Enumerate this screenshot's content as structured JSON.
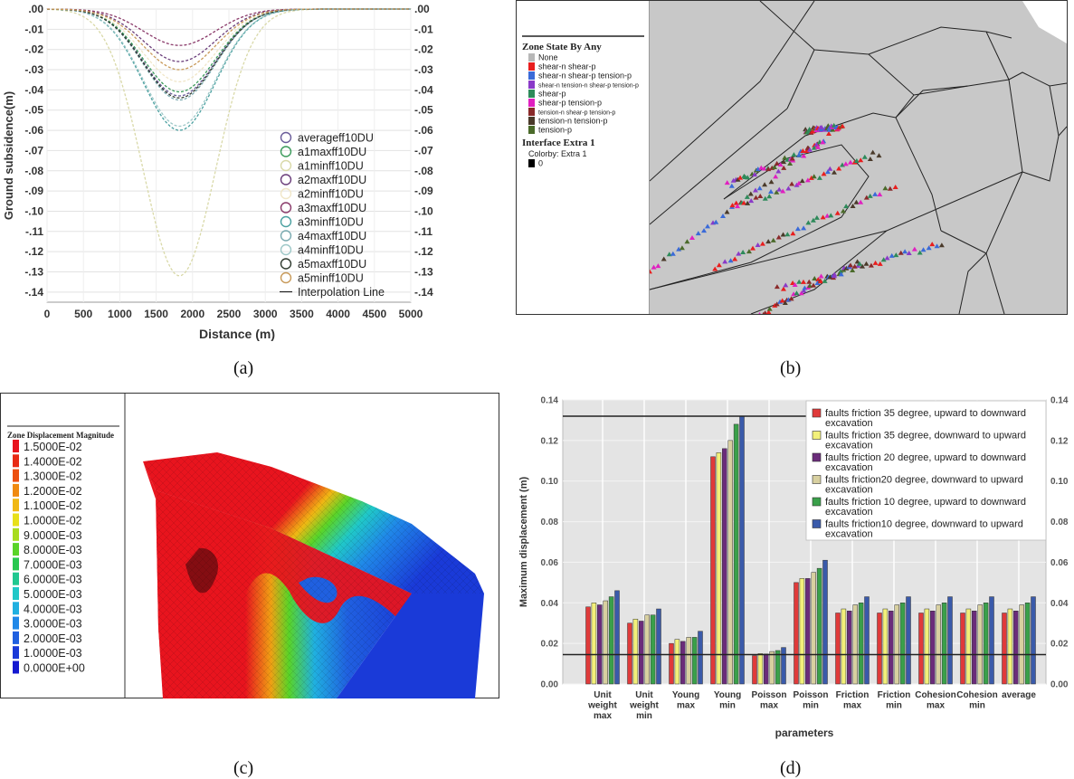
{
  "captions": [
    "(a)",
    "(b)",
    "(c)",
    "(d)"
  ],
  "chart_data": [
    {
      "type": "line",
      "panel": "a",
      "xlabel": "Distance (m)",
      "ylabel": "Ground subsidence(m)",
      "xlim": [
        0,
        5000
      ],
      "ylim": [
        -0.145,
        0.0
      ],
      "x_ticks": [
        "0",
        "500",
        "1000",
        "1500",
        "2000",
        "2500",
        "3000",
        "3500",
        "4000",
        "4500",
        "5000"
      ],
      "y_ticks": [
        ".00",
        "-.01",
        "-.02",
        "-.03",
        "-.04",
        "-.05",
        "-.06",
        "-.07",
        "-.08",
        "-.09",
        "-.10",
        "-.11",
        "-.12",
        "-.13",
        "-.14"
      ],
      "y_ticks_right": [
        ".00",
        "-.01",
        "-.02",
        "-.03",
        "-.04",
        "-.05",
        "-.06",
        "-.07",
        "-.08",
        "-.09",
        "-.10",
        "-.11",
        "-.12",
        "-.13",
        "-.14"
      ],
      "curve_shape": {
        "center": 1820,
        "width": 700
      },
      "series": [
        {
          "name": "averageff10DU",
          "marker_color": "#6a5c99",
          "min": -0.043
        },
        {
          "name": "a1maxff10DU",
          "marker_color": "#3a9a5a",
          "min": -0.041
        },
        {
          "name": "a1minff10DU",
          "marker_color": "#d9d9a8",
          "min": -0.132
        },
        {
          "name": "a2maxff10DU",
          "marker_color": "#6a3d7a",
          "min": -0.026
        },
        {
          "name": "a2minff10DU",
          "marker_color": "#f0e6c8",
          "min": -0.036
        },
        {
          "name": "a3maxff10DU",
          "marker_color": "#8a3a6a",
          "min": -0.018
        },
        {
          "name": "a3minff10DU",
          "marker_color": "#4aa0a0",
          "min": -0.06
        },
        {
          "name": "a4maxff10DU",
          "marker_color": "#7aaab0",
          "min": -0.045
        },
        {
          "name": "a4minff10DU",
          "marker_color": "#9ec8c8",
          "min": -0.058
        },
        {
          "name": "a5maxff10DU",
          "marker_color": "#2f3b2f",
          "min": -0.044
        },
        {
          "name": "a5minff10DU",
          "marker_color": "#c89a5a",
          "min": -0.03
        }
      ],
      "interpolation_label": "Interpolation Line"
    },
    {
      "type": "bar",
      "panel": "d",
      "xlabel": "parameters",
      "ylabel": "Maximum displacement (m)",
      "ylim": [
        0,
        0.14
      ],
      "y_ticks": [
        "0.00",
        "0.02",
        "0.04",
        "0.06",
        "0.08",
        "0.10",
        "0.12",
        "0.14"
      ],
      "categories": [
        [
          "Unit",
          "weight",
          "max"
        ],
        [
          "Unit",
          "weight",
          "min"
        ],
        [
          "Young",
          "max"
        ],
        [
          "Young",
          "min"
        ],
        [
          "Poisson",
          "max"
        ],
        [
          "Poisson",
          "min"
        ],
        [
          "Friction",
          "max"
        ],
        [
          "Friction",
          "min"
        ],
        [
          "Cohesion",
          "max"
        ],
        [
          "Cohesion",
          "min"
        ],
        [
          "average"
        ]
      ],
      "reference_lines": [
        0.132,
        0.0145
      ],
      "series": [
        {
          "name": "faults friction 35 degree, upward to downward excavation",
          "color": "#e03a3a",
          "values": [
            0.038,
            0.03,
            0.02,
            0.112,
            0.014,
            0.05,
            0.035,
            0.035,
            0.035,
            0.035,
            0.035
          ]
        },
        {
          "name": "faults friction 35 degree,  downward to upward excavation",
          "color": "#f2f07a",
          "values": [
            0.04,
            0.032,
            0.022,
            0.114,
            0.015,
            0.052,
            0.037,
            0.037,
            0.037,
            0.037,
            0.037
          ]
        },
        {
          "name": "faults friction 20 degree, upward to downward excavation",
          "color": "#6a2c7a",
          "values": [
            0.039,
            0.031,
            0.021,
            0.116,
            0.0148,
            0.052,
            0.036,
            0.036,
            0.036,
            0.036,
            0.036
          ]
        },
        {
          "name": "faults friction20 degree,  downward to upward excavation",
          "color": "#d8d0a0",
          "values": [
            0.041,
            0.034,
            0.023,
            0.12,
            0.016,
            0.055,
            0.039,
            0.039,
            0.039,
            0.039,
            0.039
          ]
        },
        {
          "name": "faults friction 10 degree, upward to downward excavation",
          "color": "#3aa04a",
          "values": [
            0.043,
            0.034,
            0.023,
            0.128,
            0.0165,
            0.057,
            0.04,
            0.04,
            0.04,
            0.04,
            0.04
          ]
        },
        {
          "name": "faults friction10 degree, downward to upward excavation",
          "color": "#3a5aaa",
          "values": [
            0.046,
            0.037,
            0.026,
            0.132,
            0.018,
            0.061,
            0.043,
            0.043,
            0.043,
            0.043,
            0.043
          ]
        }
      ]
    }
  ],
  "zone_legend": {
    "title": "Zone State By Any",
    "items": [
      {
        "label": "None",
        "color": "#b8b8b8"
      },
      {
        "label": "shear-n shear-p",
        "color": "#e81e1e"
      },
      {
        "label": "shear-n shear-p tension-p",
        "color": "#3a6ad8"
      },
      {
        "label": "shear-n tension-n shear-p tension-p",
        "color": "#8a3ac8"
      },
      {
        "label": "shear-p",
        "color": "#2e8a5a"
      },
      {
        "label": "shear-p tension-p",
        "color": "#e020c0"
      },
      {
        "label": "tension-n shear-p tension-p",
        "color": "#8a2a2a"
      },
      {
        "label": "tension-n tension-p",
        "color": "#4a3a2a"
      },
      {
        "label": "tension-p",
        "color": "#4a6a2a"
      }
    ],
    "interface_title": "Interface Extra 1",
    "colorby": "Colorby: Extra 1",
    "interface_items": [
      {
        "label": "0",
        "color": "#000000"
      }
    ]
  },
  "displacement_legend": {
    "title": "Zone Displacement Magnitude",
    "items": [
      {
        "label": "1.5000E-02",
        "color": "#e8141e"
      },
      {
        "label": "1.4000E-02",
        "color": "#e82a14"
      },
      {
        "label": "1.3000E-02",
        "color": "#ec5010"
      },
      {
        "label": "1.2000E-02",
        "color": "#f08a10"
      },
      {
        "label": "1.1000E-02",
        "color": "#f0b814"
      },
      {
        "label": "1.0000E-02",
        "color": "#e8e01a"
      },
      {
        "label": "9.0000E-03",
        "color": "#a8dc1e"
      },
      {
        "label": "8.0000E-03",
        "color": "#5ad428"
      },
      {
        "label": "7.0000E-03",
        "color": "#28c850"
      },
      {
        "label": "6.0000E-03",
        "color": "#20c890"
      },
      {
        "label": "5.0000E-03",
        "color": "#20c8c8"
      },
      {
        "label": "4.0000E-03",
        "color": "#20b0e0"
      },
      {
        "label": "3.0000E-03",
        "color": "#2088e8"
      },
      {
        "label": "2.0000E-03",
        "color": "#2060e0"
      },
      {
        "label": "1.0000E-03",
        "color": "#1a3ad8"
      },
      {
        "label": "0.0000E+00",
        "color": "#1418d0"
      }
    ]
  }
}
